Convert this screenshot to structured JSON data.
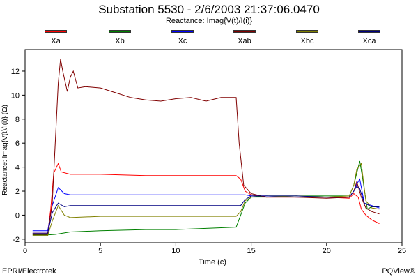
{
  "chart_data": {
    "type": "line",
    "title": "Substation 5530 - 2/6/2003 21:37:06.0470",
    "subtitle": "Reactance: Imag{V(t)/I(i)}",
    "xlabel": "Time (c)",
    "ylabel": "Reactance: Imag{V(t)/I(i)} (Ω)",
    "xlim": [
      0,
      25
    ],
    "ylim": [
      -2.3,
      13.8
    ],
    "xticks": [
      0,
      5,
      10,
      15,
      20,
      25
    ],
    "yticks": [
      -2,
      0,
      2,
      4,
      6,
      8,
      10,
      12
    ],
    "grid": false,
    "legend_position": "top",
    "series": [
      {
        "name": "Xa",
        "color": "#ff0000",
        "x": [
          0.5,
          1.5,
          1.7,
          1.9,
          2.2,
          2.4,
          3,
          5,
          8,
          10,
          12,
          14,
          14.3,
          14.6,
          15,
          16,
          18,
          20,
          21.5,
          21.8,
          22.1,
          22.3,
          22.6,
          23,
          23.5
        ],
        "y": [
          -1.5,
          -1.5,
          0.5,
          3.5,
          4.3,
          3.6,
          3.4,
          3.4,
          3.3,
          3.3,
          3.3,
          3.3,
          3.0,
          2.0,
          1.7,
          1.5,
          1.5,
          1.5,
          1.4,
          1.8,
          1.5,
          0.5,
          0,
          -0.4,
          -0.7
        ]
      },
      {
        "name": "Xb",
        "color": "#008000",
        "x": [
          0.5,
          1.5,
          2,
          3,
          5,
          8,
          10,
          12,
          14,
          14.3,
          14.6,
          15,
          16,
          18,
          20,
          21.5,
          21.8,
          22,
          22.2,
          22.4,
          22.7,
          23,
          23.5
        ],
        "y": [
          -1.65,
          -1.65,
          -1.6,
          -1.4,
          -1.3,
          -1.2,
          -1.2,
          -1.1,
          -1.0,
          0,
          1.0,
          1.5,
          1.6,
          1.6,
          1.6,
          1.6,
          2.5,
          3.5,
          4.5,
          3.0,
          0.5,
          0.7,
          0.7
        ]
      },
      {
        "name": "Xc",
        "color": "#0000ff",
        "x": [
          0.5,
          1.5,
          1.8,
          2.2,
          2.6,
          3,
          5,
          8,
          10,
          12,
          14,
          14.3,
          14.6,
          15,
          16,
          18,
          20,
          21.5,
          21.8,
          22,
          22.2,
          22.5,
          23,
          23.5
        ],
        "y": [
          -1.3,
          -1.3,
          0.8,
          2.3,
          1.8,
          1.7,
          1.7,
          1.7,
          1.7,
          1.7,
          1.7,
          1.7,
          1.7,
          1.6,
          1.6,
          1.5,
          1.5,
          1.5,
          2.0,
          2.6,
          3.0,
          1.0,
          0.8,
          0.6
        ]
      },
      {
        "name": "Xab",
        "color": "#800000",
        "x": [
          0.5,
          1.5,
          1.8,
          2,
          2.2,
          2.35,
          2.5,
          2.8,
          3,
          3.2,
          3.5,
          4,
          5,
          6,
          7,
          8,
          9,
          10,
          11,
          12,
          13,
          14,
          14.2,
          14.5,
          15,
          16,
          18,
          20,
          21.5,
          21.8,
          22,
          22.3,
          22.6,
          23,
          23.5
        ],
        "y": [
          -1.6,
          -1.6,
          1.0,
          6.0,
          11.0,
          13.0,
          12.0,
          10.3,
          11.5,
          12.0,
          10.6,
          10.7,
          10.6,
          10.2,
          9.8,
          9.6,
          9.5,
          9.7,
          9.8,
          9.5,
          9.8,
          9.8,
          6.0,
          2.5,
          1.8,
          1.5,
          1.5,
          1.4,
          1.5,
          2.0,
          2.8,
          1.5,
          0.6,
          0.3,
          0.1
        ]
      },
      {
        "name": "Xbc",
        "color": "#808000",
        "x": [
          0.5,
          1.5,
          1.8,
          2.2,
          2.6,
          3,
          5,
          8,
          10,
          12,
          14,
          14.3,
          14.6,
          15,
          16,
          18,
          20,
          21.5,
          21.8,
          22,
          22.3,
          22.6,
          23,
          23.5
        ],
        "y": [
          -1.7,
          -1.7,
          -0.5,
          0.8,
          0.0,
          -0.2,
          -0.1,
          -0.1,
          -0.1,
          -0.1,
          -0.1,
          0.3,
          1.2,
          1.5,
          1.5,
          1.6,
          1.5,
          1.6,
          2.5,
          3.8,
          4.3,
          1.2,
          0.6,
          0.5
        ]
      },
      {
        "name": "Xca",
        "color": "#000080",
        "x": [
          0.5,
          1.5,
          1.8,
          2.2,
          2.6,
          3,
          5,
          8,
          10,
          12,
          14,
          14.3,
          14.6,
          15,
          16,
          18,
          20,
          21.5,
          21.8,
          22,
          22.2,
          22.5,
          23,
          23.5
        ],
        "y": [
          -1.5,
          -1.5,
          0.2,
          1.0,
          0.7,
          0.8,
          0.8,
          0.8,
          0.8,
          0.8,
          0.8,
          0.8,
          1.3,
          1.6,
          1.6,
          1.6,
          1.5,
          1.5,
          2.0,
          2.4,
          2.2,
          1.0,
          0.7,
          0.7
        ]
      }
    ]
  },
  "footer": {
    "left": "EPRI/Electrotek",
    "right": "PQView®"
  }
}
